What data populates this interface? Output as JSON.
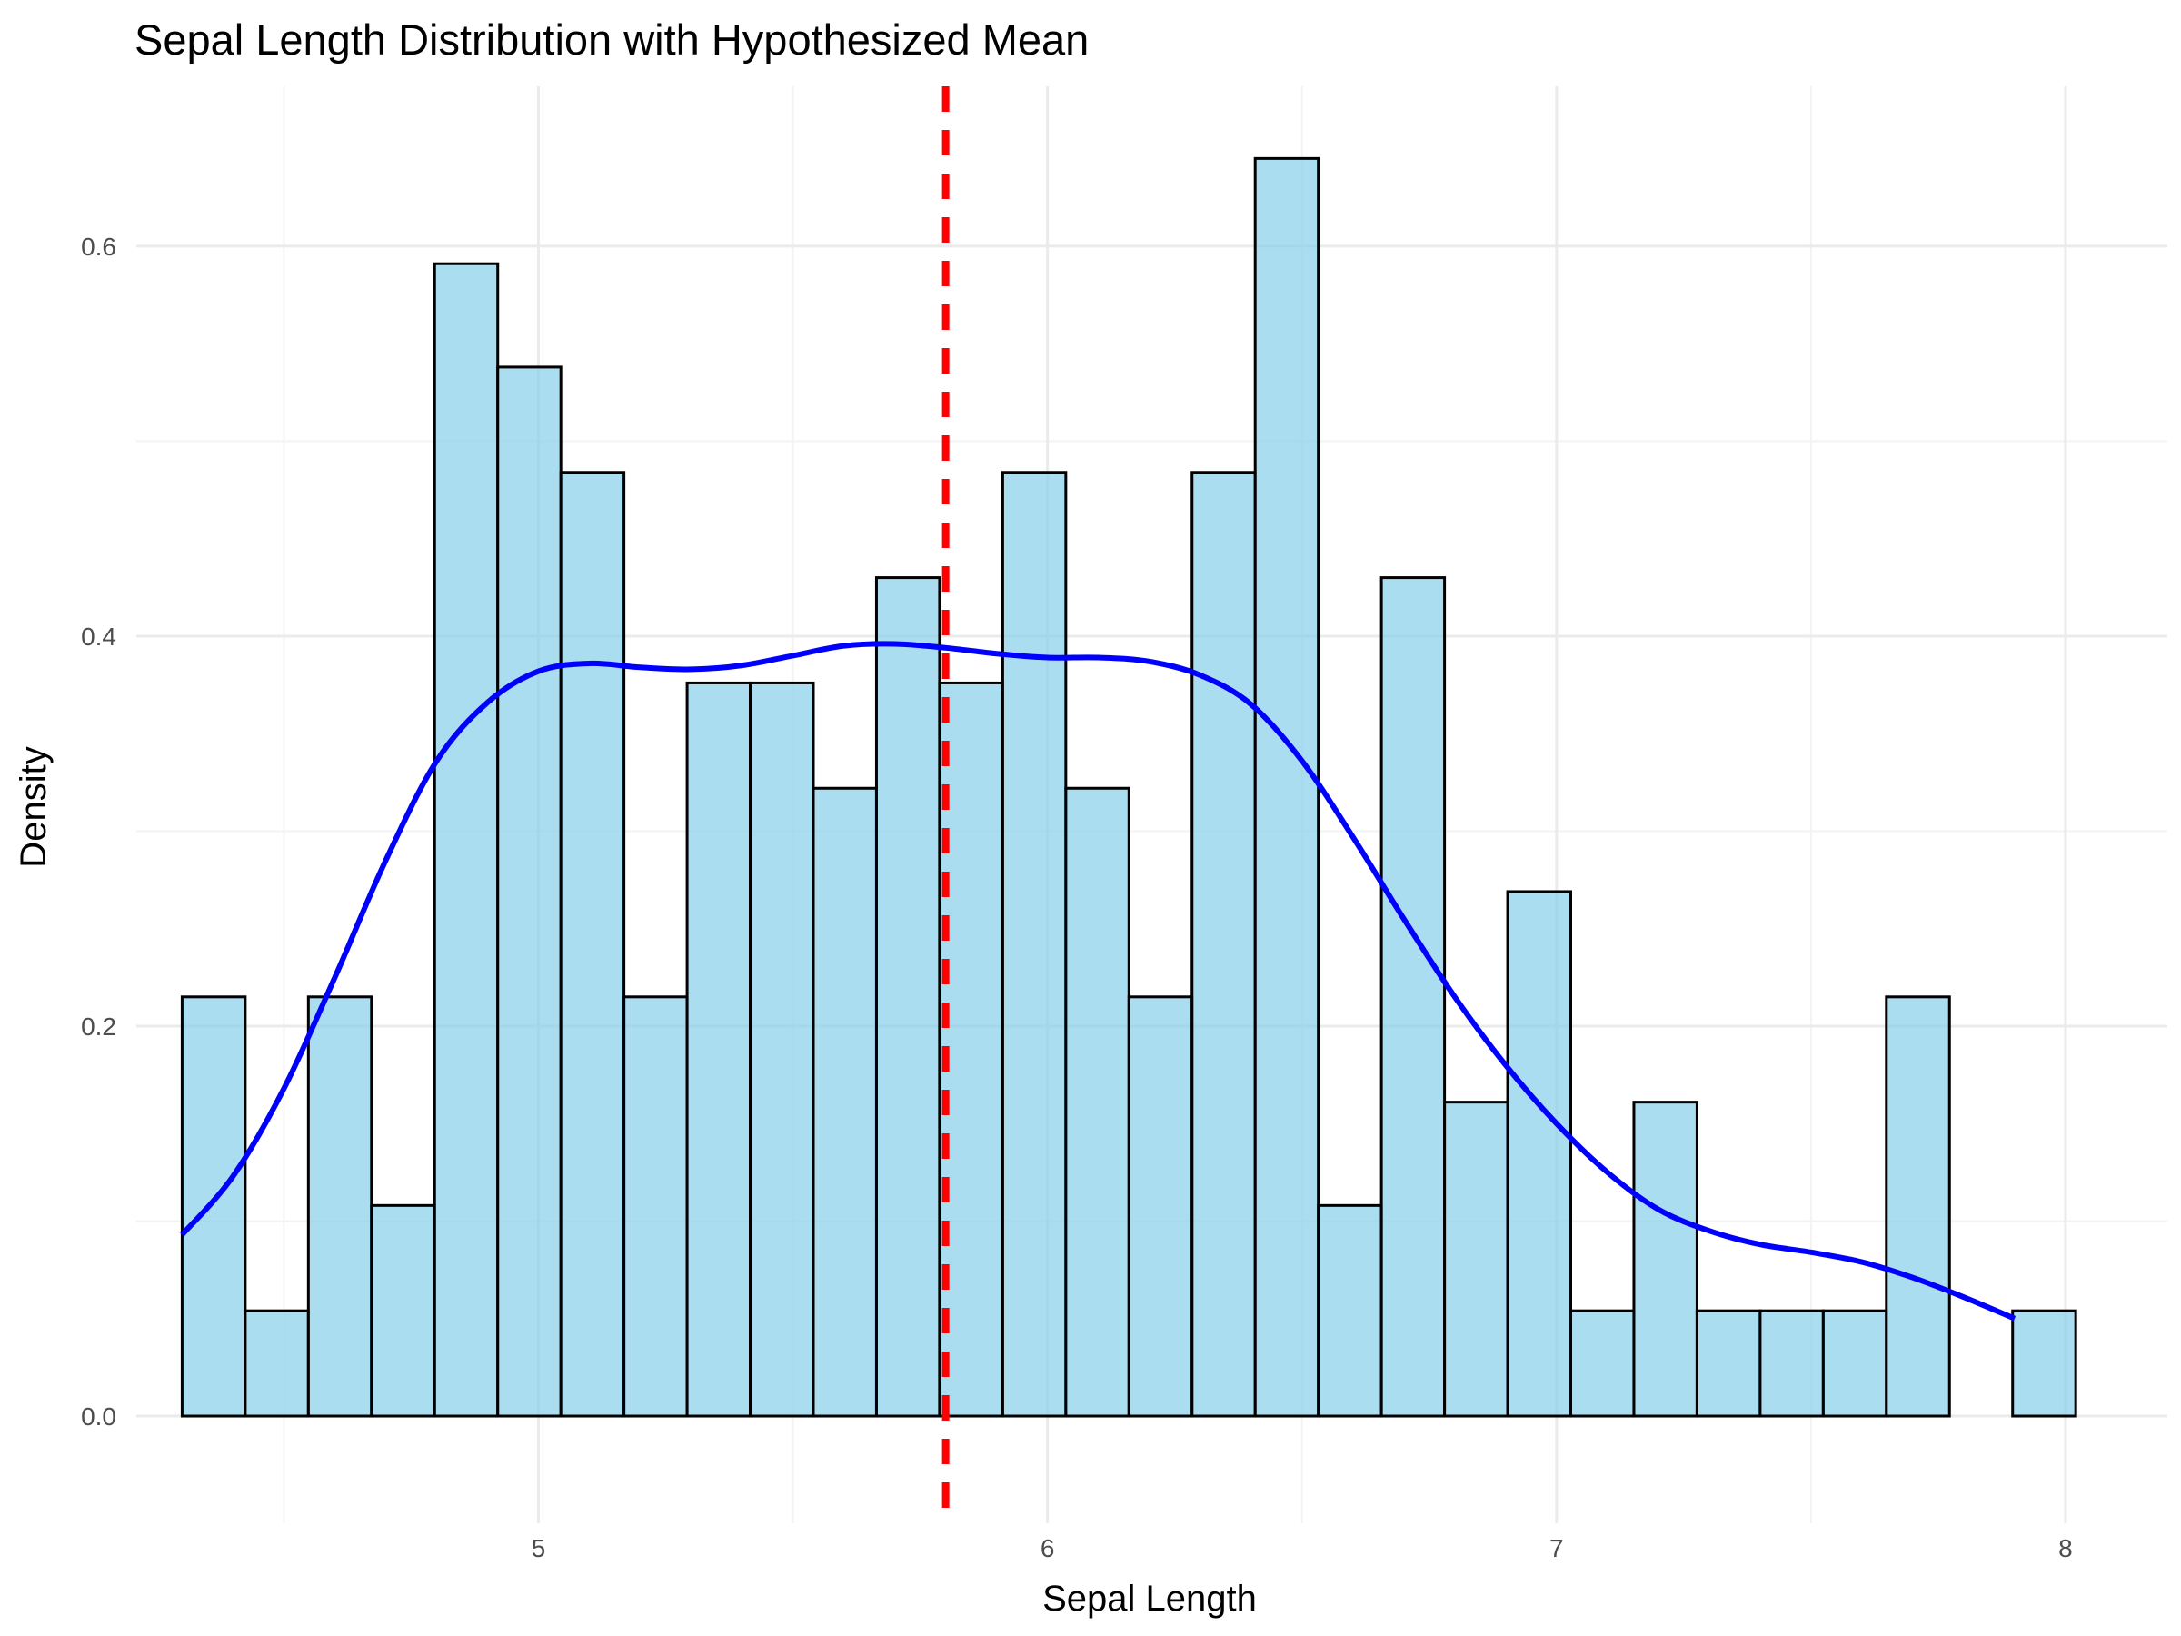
{
  "chart_data": {
    "type": "bar",
    "title": "Sepal Length Distribution with Hypothesized Mean",
    "xlabel": "Sepal Length",
    "ylabel": "Density",
    "xlim": [
      4.21,
      8.2
    ],
    "ylim": [
      -0.055,
      0.682
    ],
    "x_ticks": [
      5,
      6,
      7,
      8
    ],
    "x_tick_labels": [
      "5",
      "6",
      "7",
      "8"
    ],
    "y_ticks": [
      0.0,
      0.2,
      0.4,
      0.6
    ],
    "y_tick_labels": [
      "0.0",
      "0.2",
      "0.4",
      "0.6"
    ],
    "grid": true,
    "legend": "none",
    "bin_start": 4.3,
    "bin_width": 0.124,
    "bar_values": [
      0.215,
      0.054,
      0.215,
      0.108,
      0.591,
      0.538,
      0.484,
      0.215,
      0.376,
      0.376,
      0.322,
      0.43,
      0.376,
      0.484,
      0.322,
      0.215,
      0.484,
      0.645,
      0.108,
      0.43,
      0.161,
      0.269,
      0.054,
      0.161,
      0.054,
      0.054,
      0.054,
      0.215,
      0.0,
      0.054
    ],
    "density_curve": {
      "x": [
        4.3,
        4.4,
        4.5,
        4.6,
        4.7,
        4.8,
        4.9,
        5.0,
        5.1,
        5.2,
        5.3,
        5.4,
        5.5,
        5.6,
        5.7,
        5.8,
        5.9,
        6.0,
        6.1,
        6.2,
        6.3,
        6.4,
        6.5,
        6.6,
        6.7,
        6.8,
        6.9,
        7.0,
        7.1,
        7.2,
        7.3,
        7.4,
        7.5,
        7.6,
        7.7,
        7.8,
        7.9
      ],
      "y": [
        0.093,
        0.123,
        0.168,
        0.225,
        0.285,
        0.336,
        0.366,
        0.382,
        0.386,
        0.384,
        0.383,
        0.385,
        0.39,
        0.395,
        0.396,
        0.394,
        0.391,
        0.389,
        0.389,
        0.387,
        0.38,
        0.365,
        0.336,
        0.297,
        0.255,
        0.215,
        0.18,
        0.15,
        0.125,
        0.106,
        0.095,
        0.088,
        0.084,
        0.079,
        0.071,
        0.061,
        0.05
      ],
      "color": "#0000ff"
    },
    "hypothesized_mean": 5.8,
    "mean_line_color": "#ff0000",
    "bar_fill_color": "#87ceeb",
    "bar_outline_color": "#000000"
  }
}
